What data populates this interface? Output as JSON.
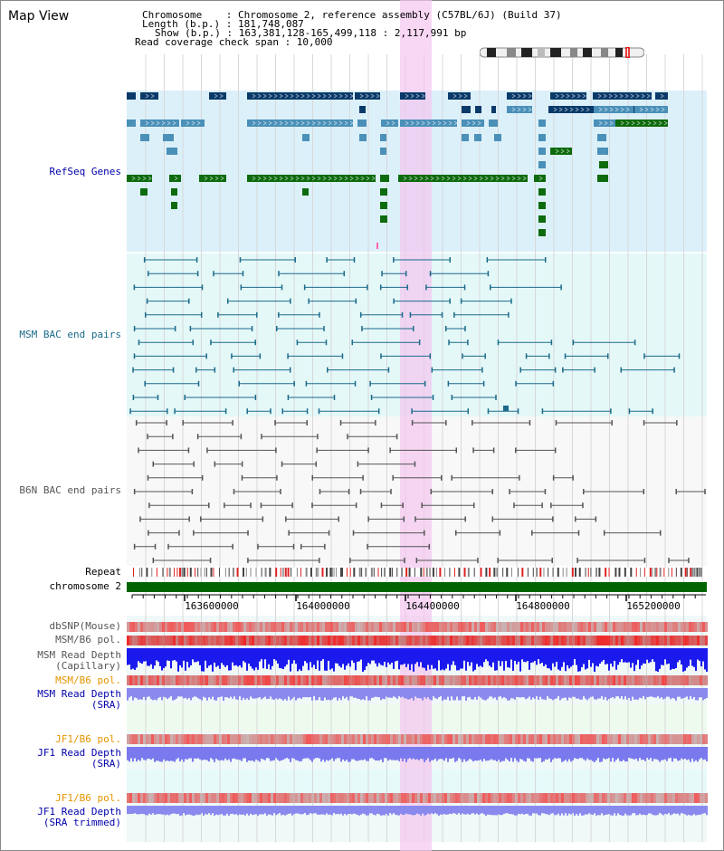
{
  "title": "Map View",
  "info": {
    "chromosome": "Chromosome    : Chromosome 2, reference assembly (C57BL/6J) (Build 37)",
    "length": "Length (b.p.) : 181,748,087",
    "show": "Show (b.p.) : 163,381,128-165,499,118 : 2,117,991 bp",
    "span": "Read coverage check span : 10,000"
  },
  "tracks": {
    "refseq": "RefSeq Genes",
    "msm_bac": "MSM BAC end pairs",
    "b6n_bac": "B6N BAC end pairs",
    "repeat": "Repeat",
    "chromosome": "chromosome 2",
    "dbsnp": "dbSNP(Mouse)",
    "msm_b6_pol": "MSM/B6 pol.",
    "msm_depth_cap_1": "MSM Read Depth",
    "msm_depth_cap_2": "(Capillary)",
    "msm_b6_pol_2": "MSM/B6 pol.",
    "msm_depth_sra_1": "MSM Read Depth",
    "msm_depth_sra_2": "(SRA)",
    "jf1_b6_pol": "JF1/B6 pol.",
    "jf1_depth_sra_1": "JF1 Read Depth",
    "jf1_depth_sra_2": "(SRA)",
    "jf1_b6_pol_2": "JF1/B6 pol.",
    "jf1_depth_trim_1": "JF1 Read Depth",
    "jf1_depth_trim_2": "(SRA trimmed)"
  },
  "axis": {
    "ticks": [
      "163600000",
      "164000000",
      "164400000",
      "164800000",
      "165200000"
    ]
  },
  "colors": {
    "refseq_dark": "#0a3a6a",
    "refseq_mid": "#4a90b8",
    "refseq_green": "#0d6b0d",
    "msm_pair": "#1a6a8a",
    "b6n_pair": "#555555",
    "highlight": "#f3c6f0",
    "chrom_bar": "#006400",
    "label_blue": "#0000aa",
    "label_teal": "#1a6a8a",
    "label_gray": "#555555",
    "label_orange": "#e69500"
  }
}
